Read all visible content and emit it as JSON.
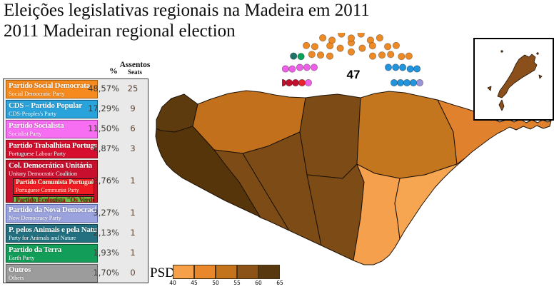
{
  "title": {
    "line1": "Eleições legislativas regionais na Madeira em 2011",
    "line2": "2011 Madeiran regional election"
  },
  "legend": {
    "header": {
      "pct": "%",
      "seats_pt": "Assentos",
      "seats_en": "Seats"
    },
    "parties": [
      {
        "id": "psd",
        "name_pt": "Partido Social Democrata",
        "name_en": "Social Democratic Party",
        "pct": "48,57%",
        "seats": "25",
        "color": "#F68A1E",
        "border": "#a85e08",
        "text_color": "#FFFFFF"
      },
      {
        "id": "cds",
        "name_pt": "CDS – Partido Popular",
        "name_en": "CDS-Peoples's Party",
        "pct": "17,29%",
        "seats": "9",
        "color": "#29A3DC",
        "border": "#0f5e86",
        "text_color": "#FFFFFF"
      },
      {
        "id": "ps",
        "name_pt": "Partido Socialista",
        "name_en": "Socialist Party",
        "pct": "11,50%",
        "seats": "6",
        "color": "#F76EF3",
        "border": "#a33aa0",
        "text_color": "#FFFFFF"
      },
      {
        "id": "ptp",
        "name_pt": "Partido Trabalhista Português",
        "name_en": "Portuguese Labour Party",
        "pct": "6,87%",
        "seats": "3",
        "color": "#D60D2C",
        "border": "#7a0a18",
        "text_color": "#FFFFFF"
      },
      {
        "id": "cdu",
        "name_pt": "Col. Democrática Unitária",
        "name_en": "Unitary Democratic Coalition",
        "pct": "3,76%",
        "seats": "1",
        "color": "#C8102E",
        "border": "#6e0505",
        "text_color": "#FFFFFF",
        "children": [
          {
            "id": "pcp",
            "name_pt": "Partido Comunista Português",
            "name_en": "Portuguese Communist Party",
            "color": "#F01B22",
            "border": "#2a1010",
            "text_color": "#FFF6E0"
          },
          {
            "id": "pev",
            "name_pt": "Partido Ecologista \"Os Verdes\"",
            "name_en": "Ecologist Party \"The Greens\"",
            "color": "#6CBE45",
            "border": "#2a1010",
            "text_color": "#8B1500"
          }
        ]
      },
      {
        "id": "pnd",
        "name_pt": "Partido da Nova Democracia",
        "name_en": "New Democracy Party",
        "pct": "3,27%",
        "seats": "1",
        "color": "#9BA3DE",
        "border": "#5a62a8",
        "text_color": "#FFFFFF"
      },
      {
        "id": "pan",
        "name_pt": "P. pelos Animais e pela Natureza",
        "name_en": "Party for Animals and Nature",
        "pct": "2,13%",
        "seats": "1",
        "color": "#227080",
        "border": "#0f3e48",
        "text_color": "#FFFFFF"
      },
      {
        "id": "mpt",
        "name_pt": "Partido da Terra",
        "name_en": "Earth Party",
        "pct": "1,93%",
        "seats": "1",
        "color": "#129E58",
        "border": "#0a5c34",
        "text_color": "#FFFFFF"
      },
      {
        "id": "outros",
        "name_pt": "Outros",
        "name_en": "Others",
        "pct": "1,70%",
        "seats": "0",
        "color": "#9C9C9C",
        "border": "#5e5e5e",
        "text_color": "#FFFFFF"
      }
    ]
  },
  "parliament": {
    "total_label": "47",
    "seats_by_party": [
      {
        "party": "PTP",
        "count": 3,
        "color": "#C00F2D"
      },
      {
        "party": "CDU",
        "count": 1,
        "color": "#E8212B"
      },
      {
        "party": "PS",
        "count": 6,
        "color": "#EE5FE8"
      },
      {
        "party": "PAN",
        "count": 1,
        "color": "#1E7468"
      },
      {
        "party": "MPT",
        "count": 1,
        "color": "#0AA158"
      },
      {
        "party": "PSD",
        "count": 25,
        "color": "#EE8A25"
      },
      {
        "party": "CDS",
        "count": 9,
        "color": "#2293DD"
      },
      {
        "party": "PND",
        "count": 1,
        "color": "#9A93D8"
      }
    ]
  },
  "scale": {
    "label": "PSD",
    "ticks": [
      "40",
      "45",
      "50",
      "55",
      "60",
      "65"
    ],
    "colors": [
      "#F7A04A",
      "#E8872B",
      "#C4731D",
      "#8B5317",
      "#58380E"
    ]
  },
  "map": {
    "region_colors": {
      "region-northwest": "#5E3A0F",
      "region-west": "#56350B",
      "region-north-strip": "#C2701C",
      "region-north-center": "#7C4B16",
      "region-northeast": "#C4761F",
      "region-east": "#E0822D",
      "region-center-west": "#7C4B16",
      "region-center": "#7C4B16",
      "region-center-east": "#7C4B16",
      "region-south": "#F5A04C",
      "region-southeast": "#F6A551",
      "porto-santo-island": "#8A4F1B"
    }
  }
}
